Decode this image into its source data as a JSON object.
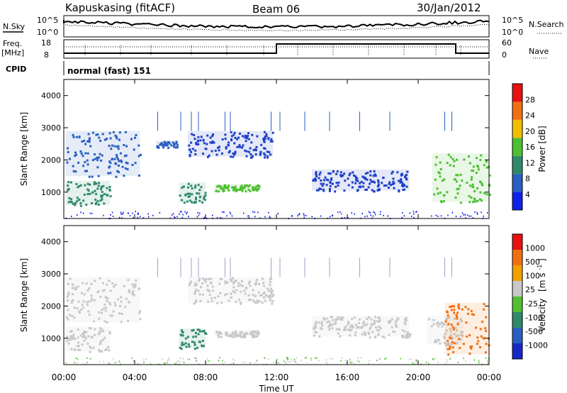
{
  "header": {
    "station": "Kapuskasing (fitACF)",
    "beam": "Beam 06",
    "date": "30/Jan/2012"
  },
  "noise_panel": {
    "left_label": "N.Sky",
    "right_label": "N.Search",
    "ticks": [
      "10^5",
      "10^0"
    ]
  },
  "freq_panel": {
    "left_label_1": "Freq.",
    "left_label_2": "[MHz]",
    "left_ticks": [
      "18",
      "8"
    ],
    "right_label": "Nave",
    "right_ticks": [
      "60",
      "0"
    ],
    "cpid_label": "CPID",
    "mode": "normal (fast) 151"
  },
  "chart_data": [
    {
      "type": "heatmap",
      "name": "power",
      "ylabel": "Slant Range [km]",
      "xlabel": "Time UT",
      "ylim": [
        180,
        4500
      ],
      "xlim": [
        0,
        24
      ],
      "yticks": [
        "1000",
        "2000",
        "3000",
        "4000"
      ],
      "xticks": [
        "00:00",
        "04:00",
        "08:00",
        "12:00",
        "16:00",
        "20:00",
        "00:00"
      ],
      "colorbar": {
        "label": "Power [dB]",
        "ticks": [
          "4",
          "8",
          "12",
          "16",
          "20",
          "24",
          "28"
        ],
        "colors": [
          "#1020e8",
          "#2a5fc0",
          "#2f8a6a",
          "#4cc030",
          "#f0c000",
          "#f07010",
          "#e81010"
        ]
      },
      "bands": [
        {
          "t0": 0.1,
          "t1": 4.3,
          "r0": 1500,
          "r1": 2900,
          "color": "#2a5fc0"
        },
        {
          "t0": 0.1,
          "t1": 2.6,
          "r0": 600,
          "r1": 1350,
          "color": "#2f8a6a"
        },
        {
          "t0": 5.2,
          "t1": 6.4,
          "r0": 2400,
          "r1": 2600,
          "color": "#2a5fc0"
        },
        {
          "t0": 6.5,
          "t1": 8.0,
          "r0": 700,
          "r1": 1300,
          "color": "#2f8a6a"
        },
        {
          "t0": 7.0,
          "t1": 11.8,
          "r0": 2100,
          "r1": 2900,
          "color": "#1f40c8"
        },
        {
          "t0": 8.5,
          "t1": 11.0,
          "r0": 1050,
          "r1": 1250,
          "color": "#4cc030"
        },
        {
          "t0": 14.0,
          "t1": 19.5,
          "r0": 1050,
          "r1": 1700,
          "color": "#1f40c8"
        },
        {
          "t0": 20.8,
          "t1": 24.0,
          "r0": 700,
          "r1": 2200,
          "color": "#4cc030"
        }
      ]
    },
    {
      "type": "heatmap",
      "name": "velocity",
      "ylabel": "Slant Range [km]",
      "xlabel": "Time UT",
      "ylim": [
        180,
        4500
      ],
      "xlim": [
        0,
        24
      ],
      "yticks": [
        "1000",
        "2000",
        "3000",
        "4000"
      ],
      "xticks": [
        "00:00",
        "04:00",
        "08:00",
        "12:00",
        "16:00",
        "20:00",
        "00:00"
      ],
      "colorbar": {
        "label": "Velocity",
        "unit": "[m s",
        "unit_sup": "-1",
        "unit_close": "]",
        "ticks": [
          "1000",
          "500",
          "100",
          "25",
          "-25",
          "-100",
          "-500",
          "-1000"
        ],
        "colors": [
          "#1828c8",
          "#2a5fc0",
          "#2f8a6a",
          "#50c030",
          "#c8c8c8",
          "#f0a000",
          "#f07010",
          "#e81010"
        ]
      },
      "bands": [
        {
          "t0": 0.1,
          "t1": 4.3,
          "r0": 1500,
          "r1": 2900,
          "color": "#c8c8c8"
        },
        {
          "t0": 0.1,
          "t1": 2.6,
          "r0": 600,
          "r1": 1350,
          "color": "#c8c8c8"
        },
        {
          "t0": 6.5,
          "t1": 8.0,
          "r0": 700,
          "r1": 1300,
          "color": "#2f8a6a"
        },
        {
          "t0": 7.0,
          "t1": 11.8,
          "r0": 2100,
          "r1": 2900,
          "color": "#c8c8c8"
        },
        {
          "t0": 8.5,
          "t1": 11.0,
          "r0": 1050,
          "r1": 1250,
          "color": "#c8c8c8"
        },
        {
          "t0": 14.0,
          "t1": 19.5,
          "r0": 1050,
          "r1": 1700,
          "color": "#c8c8c8"
        },
        {
          "t0": 20.5,
          "t1": 22.5,
          "r0": 800,
          "r1": 1700,
          "color": "#c8c8c8"
        },
        {
          "t0": 21.5,
          "t1": 24.0,
          "r0": 500,
          "r1": 2100,
          "color": "#f07010"
        }
      ]
    }
  ]
}
